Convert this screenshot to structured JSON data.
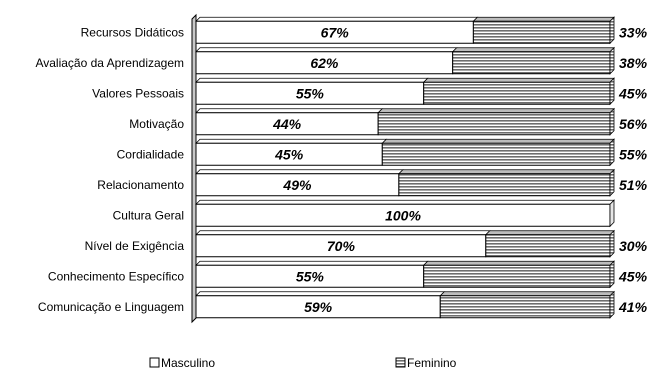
{
  "chart_data": {
    "type": "bar",
    "orientation": "horizontal",
    "stacked": "percent",
    "categories": [
      "Recursos Didáticos",
      "Avaliação da Aprendizagem",
      "Valores Pessoais",
      "Motivação",
      "Cordialidade",
      "Relacionamento",
      "Cultura Geral",
      "Nível de Exigência",
      "Conhecimento Específico",
      "Comunicação e Linguagem"
    ],
    "series": [
      {
        "name": "Masculino",
        "values": [
          67,
          62,
          55,
          44,
          45,
          49,
          100,
          70,
          55,
          59
        ],
        "labels": [
          "67%",
          "62%",
          "55%",
          "44%",
          "45%",
          "49%",
          "100%",
          "70%",
          "55%",
          "59%"
        ],
        "color": "#ffffff"
      },
      {
        "name": "Feminino",
        "values": [
          33,
          38,
          45,
          56,
          55,
          51,
          0,
          30,
          45,
          41
        ],
        "labels": [
          "33%",
          "38%",
          "45%",
          "56%",
          "55%",
          "51%",
          "",
          "30%",
          "45%",
          "41%"
        ],
        "color": "#8c8c8c"
      }
    ],
    "xlim": [
      0,
      100
    ],
    "grid": false,
    "legend": "bottom"
  }
}
